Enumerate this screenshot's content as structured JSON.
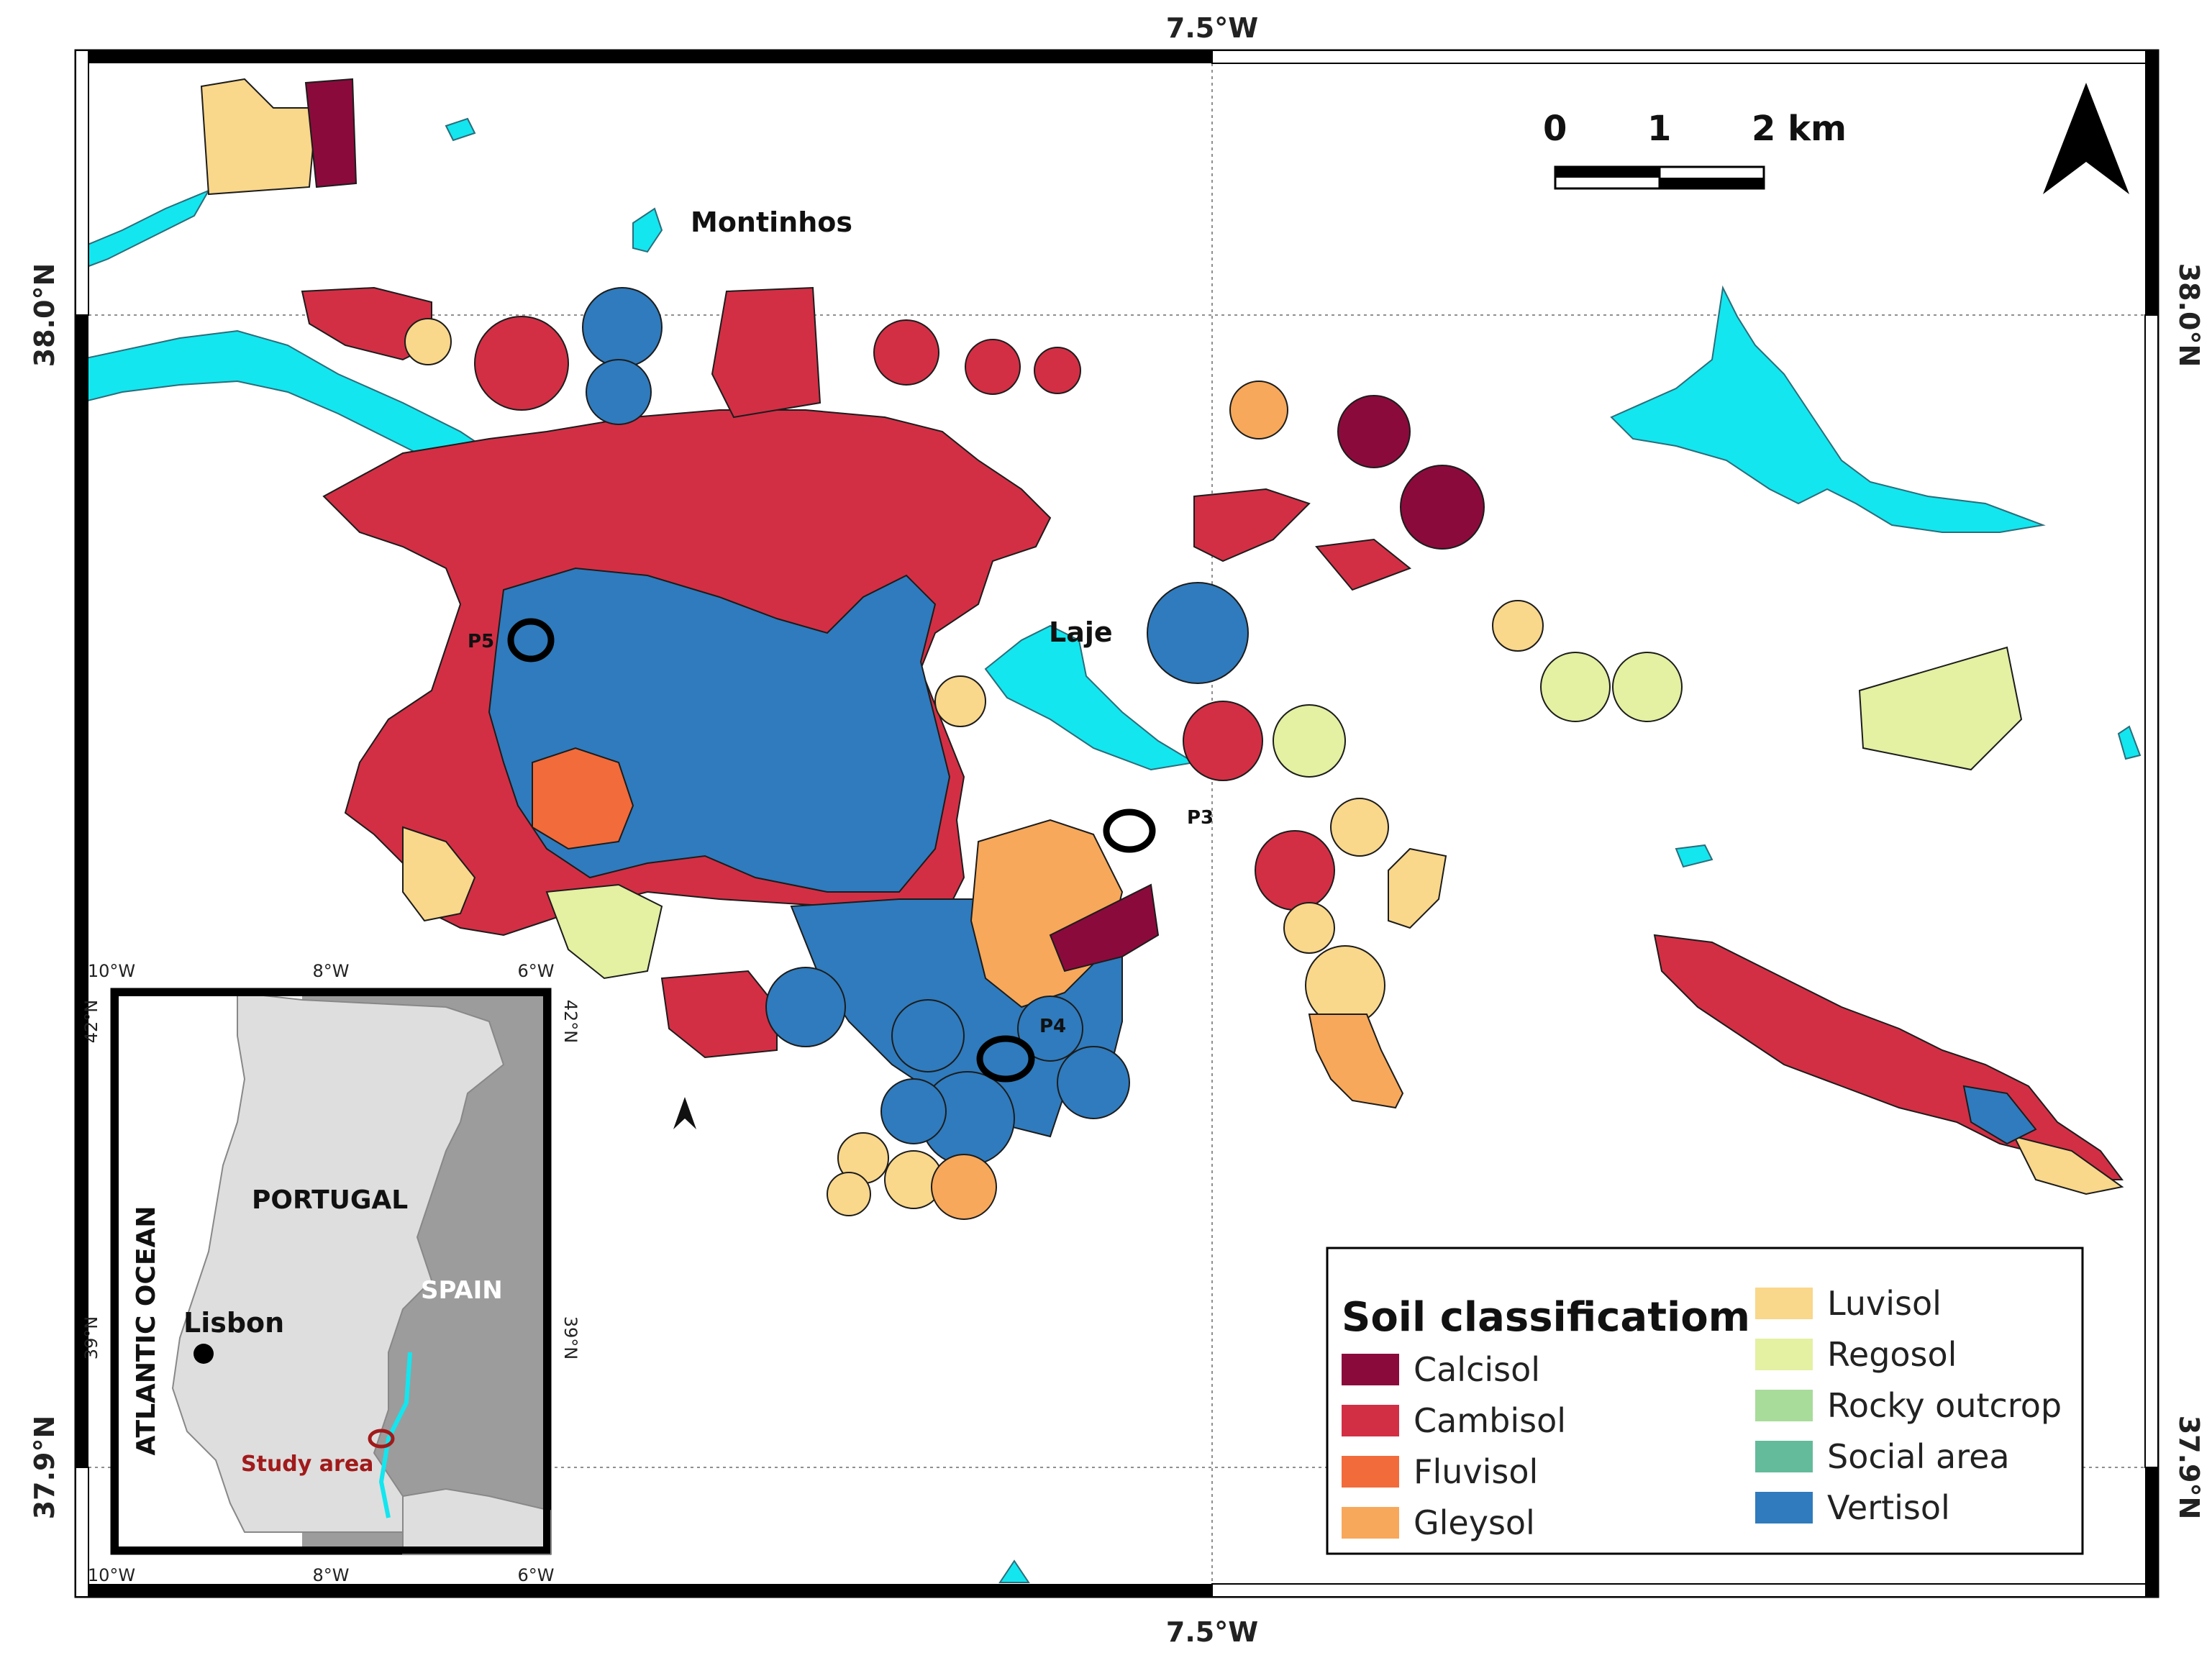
{
  "map": {
    "lon_label": "7.5°W",
    "lat_top_label": "38.0°N",
    "lat_bottom_label": "37.9°N"
  },
  "places": {
    "montinhos": "Montinhos",
    "laje": "Laje"
  },
  "points": {
    "p3": "P3",
    "p4": "P4",
    "p5": "P5"
  },
  "scale_bar": {
    "labels": [
      "0",
      "1",
      "2 km"
    ]
  },
  "inset": {
    "lon_ticks": [
      "10°W",
      "8°W",
      "6°W"
    ],
    "lat_ticks": [
      "42°N",
      "39°N"
    ],
    "portugal": "PORTUGAL",
    "spain": "SPAIN",
    "ocean": "ATLANTIC OCEAN",
    "lisbon": "Lisbon",
    "study_area": "Study area"
  },
  "legend": {
    "title": "Soil classificatiom",
    "items": [
      {
        "label": "Calcisol",
        "color": "#8b0a3c"
      },
      {
        "label": "Cambisol",
        "color": "#d22f45"
      },
      {
        "label": "Fluvisol",
        "color": "#f26b3a"
      },
      {
        "label": "Gleysol",
        "color": "#f7a85a"
      },
      {
        "label": "Luvisol",
        "color": "#f9d78b"
      },
      {
        "label": "Regosol",
        "color": "#e4f0a2"
      },
      {
        "label": "Rocky outcrop",
        "color": "#a8dc9a"
      },
      {
        "label": "Social area",
        "color": "#63bb9b"
      },
      {
        "label": "Vertisol",
        "color": "#2f7bbd"
      }
    ]
  },
  "colors": {
    "water": "#13e6ef",
    "calcisol": "#8b0a3c",
    "cambisol": "#d22f45",
    "fluvisol": "#f26b3a",
    "gleysol": "#f7a85a",
    "luvisol": "#f9d78b",
    "regosol": "#e4f0a2",
    "vertisol": "#2f7bbd",
    "inset_land": "#dedede",
    "inset_spain": "#9c9c9c"
  }
}
